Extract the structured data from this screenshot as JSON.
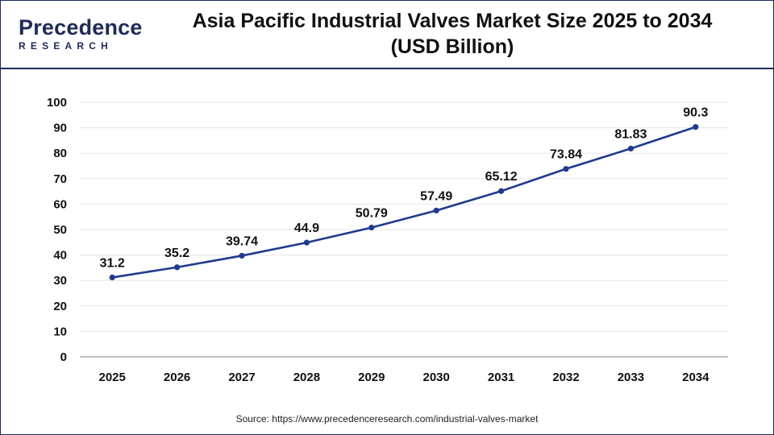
{
  "header": {
    "logo_word": "Precedence",
    "logo_sub": "RESEARCH",
    "title_line1": "Asia Pacific Industrial Valves Market Size 2025 to 2034",
    "title_line2": "(USD Billion)"
  },
  "chart_data": {
    "type": "line",
    "title": "Asia Pacific Industrial Valves Market Size 2025 to 2034 (USD Billion)",
    "xlabel": "",
    "ylabel": "",
    "categories": [
      "2025",
      "2026",
      "2027",
      "2028",
      "2029",
      "2030",
      "2031",
      "2032",
      "2033",
      "2034"
    ],
    "series": [
      {
        "values": [
          31.2,
          35.2,
          39.74,
          44.9,
          50.79,
          57.49,
          65.12,
          73.84,
          81.83,
          90.3
        ]
      }
    ],
    "data_labels": [
      "31.2",
      "35.2",
      "39.74",
      "44.9",
      "50.79",
      "57.49",
      "65.12",
      "73.84",
      "81.83",
      "90.3"
    ],
    "ylim": [
      0,
      100
    ],
    "yticks": [
      0,
      10,
      20,
      30,
      40,
      50,
      60,
      70,
      80,
      90,
      100
    ],
    "grid": true,
    "line_color": "#1f3a8f"
  },
  "footer": {
    "source": "Source: https://www.precedenceresearch.com/industrial-valves-market"
  }
}
